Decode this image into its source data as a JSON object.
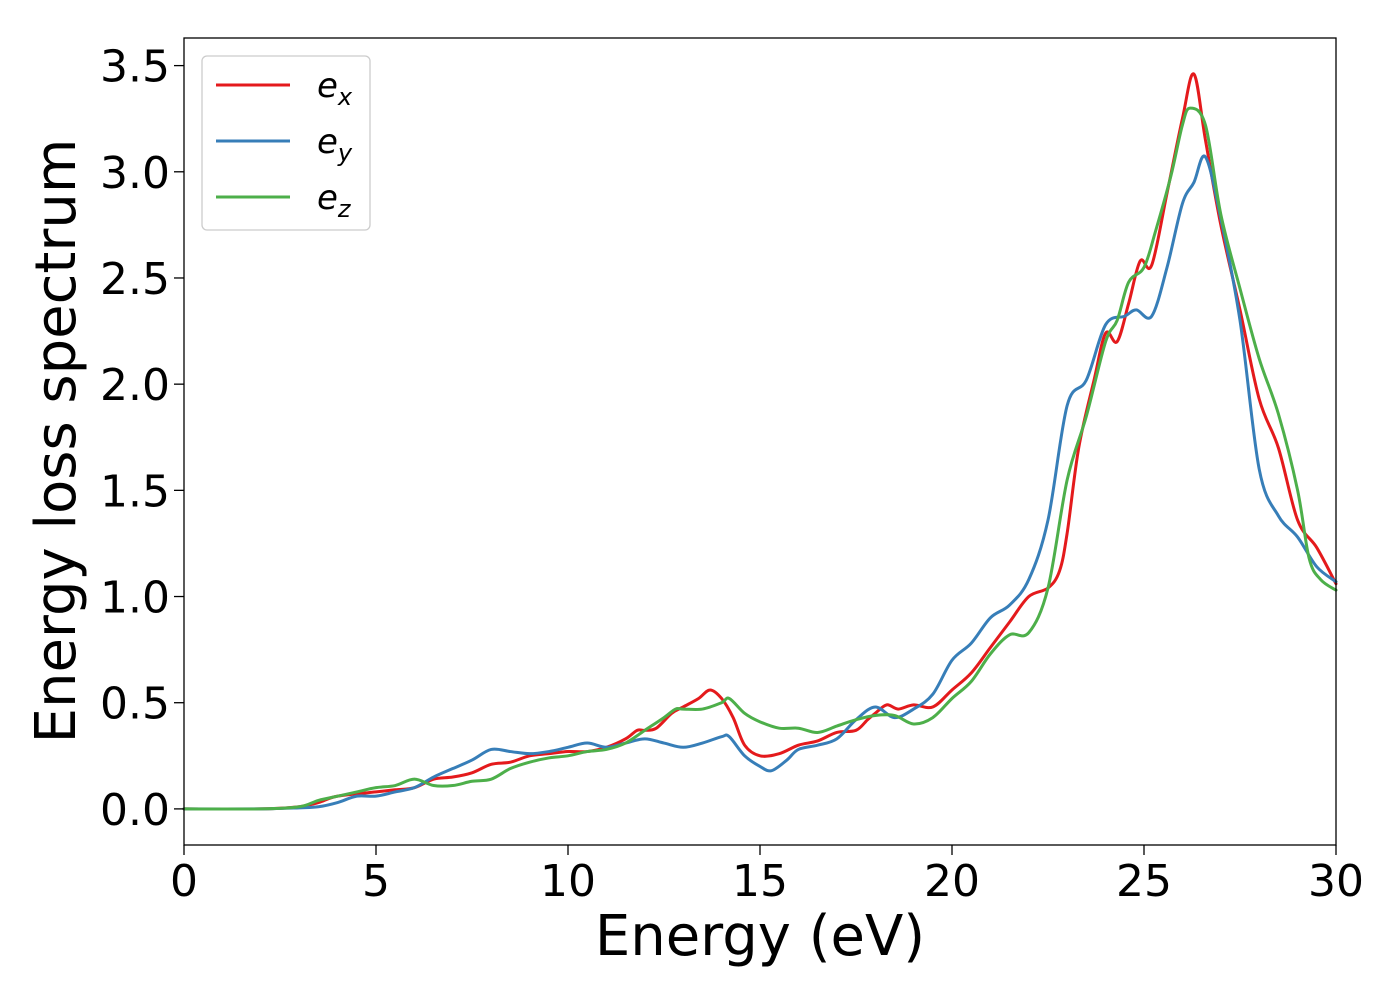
{
  "chart_data": {
    "type": "line",
    "xlabel": "Energy (eV)",
    "ylabel": "Energy loss spectrum",
    "xlim": [
      0,
      30
    ],
    "ylim": [
      -0.17,
      3.63
    ],
    "xticks": [
      0,
      5,
      10,
      15,
      20,
      25,
      30
    ],
    "yticks": [
      0.0,
      0.5,
      1.0,
      1.5,
      2.0,
      2.5,
      3.0,
      3.5
    ],
    "xtick_labels": [
      "0",
      "5",
      "10",
      "15",
      "20",
      "25",
      "30"
    ],
    "ytick_labels": [
      "0.0",
      "0.5",
      "1.0",
      "1.5",
      "2.0",
      "2.5",
      "3.0",
      "3.5"
    ],
    "grid": false,
    "legend_position": "top-left",
    "series": [
      {
        "name": "e_x",
        "label_base": "e",
        "label_sub": "x",
        "color": "#e41a1c",
        "points": [
          [
            0,
            0.0
          ],
          [
            2,
            0.0
          ],
          [
            3,
            0.01
          ],
          [
            3.5,
            0.03
          ],
          [
            4,
            0.06
          ],
          [
            5,
            0.08
          ],
          [
            5.5,
            0.09
          ],
          [
            6,
            0.1
          ],
          [
            6.5,
            0.14
          ],
          [
            7,
            0.15
          ],
          [
            7.5,
            0.17
          ],
          [
            8,
            0.21
          ],
          [
            8.5,
            0.22
          ],
          [
            9,
            0.25
          ],
          [
            9.5,
            0.26
          ],
          [
            10,
            0.27
          ],
          [
            10.5,
            0.27
          ],
          [
            11,
            0.29
          ],
          [
            11.5,
            0.33
          ],
          [
            11.8,
            0.37
          ],
          [
            12,
            0.37
          ],
          [
            12.3,
            0.38
          ],
          [
            12.7,
            0.45
          ],
          [
            13,
            0.48
          ],
          [
            13.4,
            0.52
          ],
          [
            13.7,
            0.56
          ],
          [
            14,
            0.52
          ],
          [
            14.3,
            0.43
          ],
          [
            14.6,
            0.3
          ],
          [
            15,
            0.25
          ],
          [
            15.5,
            0.26
          ],
          [
            16,
            0.3
          ],
          [
            16.5,
            0.32
          ],
          [
            17,
            0.36
          ],
          [
            17.5,
            0.37
          ],
          [
            17.8,
            0.42
          ],
          [
            18,
            0.45
          ],
          [
            18.3,
            0.49
          ],
          [
            18.6,
            0.47
          ],
          [
            19,
            0.49
          ],
          [
            19.5,
            0.48
          ],
          [
            20,
            0.56
          ],
          [
            20.5,
            0.64
          ],
          [
            21,
            0.76
          ],
          [
            21.5,
            0.88
          ],
          [
            22,
            1.0
          ],
          [
            22.5,
            1.04
          ],
          [
            22.8,
            1.12
          ],
          [
            23,
            1.3
          ],
          [
            23.3,
            1.7
          ],
          [
            23.7,
            2.02
          ],
          [
            24,
            2.24
          ],
          [
            24.3,
            2.2
          ],
          [
            24.6,
            2.38
          ],
          [
            24.9,
            2.58
          ],
          [
            25.2,
            2.56
          ],
          [
            25.6,
            2.9
          ],
          [
            26,
            3.25
          ],
          [
            26.3,
            3.46
          ],
          [
            26.6,
            3.15
          ],
          [
            27,
            2.75
          ],
          [
            27.5,
            2.35
          ],
          [
            28,
            1.93
          ],
          [
            28.5,
            1.7
          ],
          [
            29,
            1.36
          ],
          [
            29.5,
            1.23
          ],
          [
            30,
            1.06
          ]
        ]
      },
      {
        "name": "e_y",
        "label_base": "e",
        "label_sub": "y",
        "color": "#377eb8",
        "points": [
          [
            0,
            0.0
          ],
          [
            2,
            0.0
          ],
          [
            3,
            0.005
          ],
          [
            3.5,
            0.01
          ],
          [
            4,
            0.03
          ],
          [
            4.5,
            0.06
          ],
          [
            5,
            0.06
          ],
          [
            5.5,
            0.08
          ],
          [
            6,
            0.1
          ],
          [
            6.5,
            0.15
          ],
          [
            7,
            0.19
          ],
          [
            7.5,
            0.23
          ],
          [
            8,
            0.28
          ],
          [
            8.5,
            0.27
          ],
          [
            9,
            0.26
          ],
          [
            9.5,
            0.27
          ],
          [
            10,
            0.29
          ],
          [
            10.5,
            0.31
          ],
          [
            11,
            0.29
          ],
          [
            11.5,
            0.31
          ],
          [
            12,
            0.33
          ],
          [
            12.5,
            0.31
          ],
          [
            13,
            0.29
          ],
          [
            13.5,
            0.31
          ],
          [
            14,
            0.34
          ],
          [
            14.2,
            0.34
          ],
          [
            14.6,
            0.25
          ],
          [
            15,
            0.2
          ],
          [
            15.3,
            0.18
          ],
          [
            15.7,
            0.23
          ],
          [
            16,
            0.28
          ],
          [
            16.5,
            0.3
          ],
          [
            17,
            0.33
          ],
          [
            17.5,
            0.42
          ],
          [
            18,
            0.48
          ],
          [
            18.5,
            0.43
          ],
          [
            19,
            0.47
          ],
          [
            19.5,
            0.54
          ],
          [
            20,
            0.7
          ],
          [
            20.5,
            0.78
          ],
          [
            21,
            0.9
          ],
          [
            21.5,
            0.96
          ],
          [
            22,
            1.08
          ],
          [
            22.5,
            1.36
          ],
          [
            23,
            1.9
          ],
          [
            23.5,
            2.02
          ],
          [
            24,
            2.28
          ],
          [
            24.5,
            2.32
          ],
          [
            24.8,
            2.35
          ],
          [
            25.2,
            2.32
          ],
          [
            25.6,
            2.55
          ],
          [
            26,
            2.85
          ],
          [
            26.3,
            2.95
          ],
          [
            26.6,
            3.07
          ],
          [
            27,
            2.78
          ],
          [
            27.5,
            2.3
          ],
          [
            28,
            1.6
          ],
          [
            28.5,
            1.38
          ],
          [
            29,
            1.28
          ],
          [
            29.5,
            1.14
          ],
          [
            30,
            1.07
          ]
        ]
      },
      {
        "name": "e_z",
        "label_base": "e",
        "label_sub": "z",
        "color": "#4daf4a",
        "points": [
          [
            0,
            0.0
          ],
          [
            2,
            0.0
          ],
          [
            3,
            0.01
          ],
          [
            3.5,
            0.04
          ],
          [
            4,
            0.06
          ],
          [
            4.5,
            0.08
          ],
          [
            5,
            0.1
          ],
          [
            5.5,
            0.11
          ],
          [
            6,
            0.14
          ],
          [
            6.5,
            0.11
          ],
          [
            7,
            0.11
          ],
          [
            7.5,
            0.13
          ],
          [
            8,
            0.14
          ],
          [
            8.5,
            0.19
          ],
          [
            9,
            0.22
          ],
          [
            9.5,
            0.24
          ],
          [
            10,
            0.25
          ],
          [
            10.5,
            0.27
          ],
          [
            11,
            0.28
          ],
          [
            11.5,
            0.31
          ],
          [
            12,
            0.37
          ],
          [
            12.5,
            0.43
          ],
          [
            12.8,
            0.47
          ],
          [
            13,
            0.47
          ],
          [
            13.5,
            0.47
          ],
          [
            14,
            0.5
          ],
          [
            14.2,
            0.52
          ],
          [
            14.6,
            0.45
          ],
          [
            15,
            0.41
          ],
          [
            15.5,
            0.38
          ],
          [
            16,
            0.38
          ],
          [
            16.5,
            0.36
          ],
          [
            17,
            0.39
          ],
          [
            17.5,
            0.42
          ],
          [
            18,
            0.44
          ],
          [
            18.5,
            0.44
          ],
          [
            19,
            0.4
          ],
          [
            19.5,
            0.43
          ],
          [
            20,
            0.52
          ],
          [
            20.5,
            0.6
          ],
          [
            21,
            0.73
          ],
          [
            21.5,
            0.82
          ],
          [
            22,
            0.83
          ],
          [
            22.5,
            1.04
          ],
          [
            23,
            1.55
          ],
          [
            23.5,
            1.85
          ],
          [
            24,
            2.2
          ],
          [
            24.3,
            2.3
          ],
          [
            24.6,
            2.48
          ],
          [
            25,
            2.55
          ],
          [
            25.3,
            2.72
          ],
          [
            25.7,
            2.98
          ],
          [
            26,
            3.22
          ],
          [
            26.2,
            3.3
          ],
          [
            26.6,
            3.22
          ],
          [
            27,
            2.8
          ],
          [
            27.5,
            2.45
          ],
          [
            28,
            2.12
          ],
          [
            28.5,
            1.86
          ],
          [
            29,
            1.5
          ],
          [
            29.3,
            1.18
          ],
          [
            29.6,
            1.08
          ],
          [
            30,
            1.03
          ]
        ]
      }
    ]
  }
}
